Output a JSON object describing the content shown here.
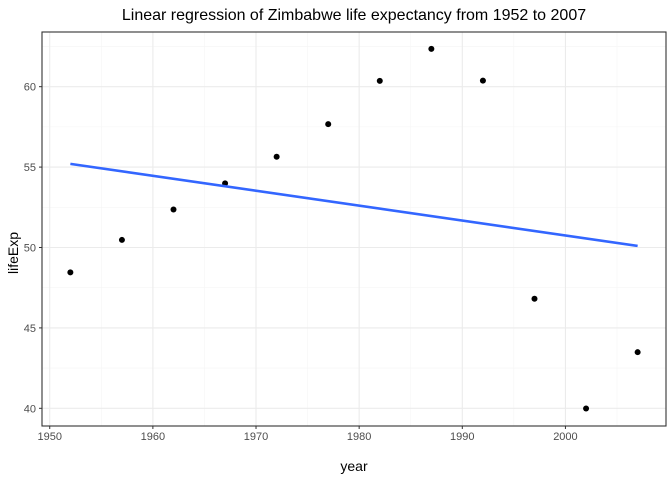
{
  "chart_data": {
    "type": "scatter",
    "title": "Linear regression of Zimbabwe life expectancy from 1952 to 2007",
    "xlabel": "year",
    "ylabel": "lifeExp",
    "xlim": [
      1949.25,
      2009.75
    ],
    "ylim": [
      38.9,
      63.4
    ],
    "x_ticks": [
      1950,
      1960,
      1970,
      1980,
      1990,
      2000
    ],
    "y_ticks": [
      40,
      45,
      50,
      55,
      60
    ],
    "grid": true,
    "series": [
      {
        "x": [
          1952,
          1957,
          1962,
          1967,
          1972,
          1977,
          1982,
          1987,
          1992,
          1997,
          2002,
          2007
        ],
        "y": [
          48.45,
          50.47,
          52.36,
          53.99,
          55.64,
          57.67,
          60.36,
          62.35,
          60.38,
          46.81,
          39.99,
          43.49
        ]
      }
    ],
    "regression_line": {
      "x": [
        1952,
        2007
      ],
      "y": [
        55.2,
        50.1
      ]
    },
    "colors": {
      "points": "#000000",
      "line": "#3366FF",
      "grid_major": "#ebebeb",
      "grid_minor": "#f5f5f5",
      "panel_border": "#333333"
    }
  }
}
